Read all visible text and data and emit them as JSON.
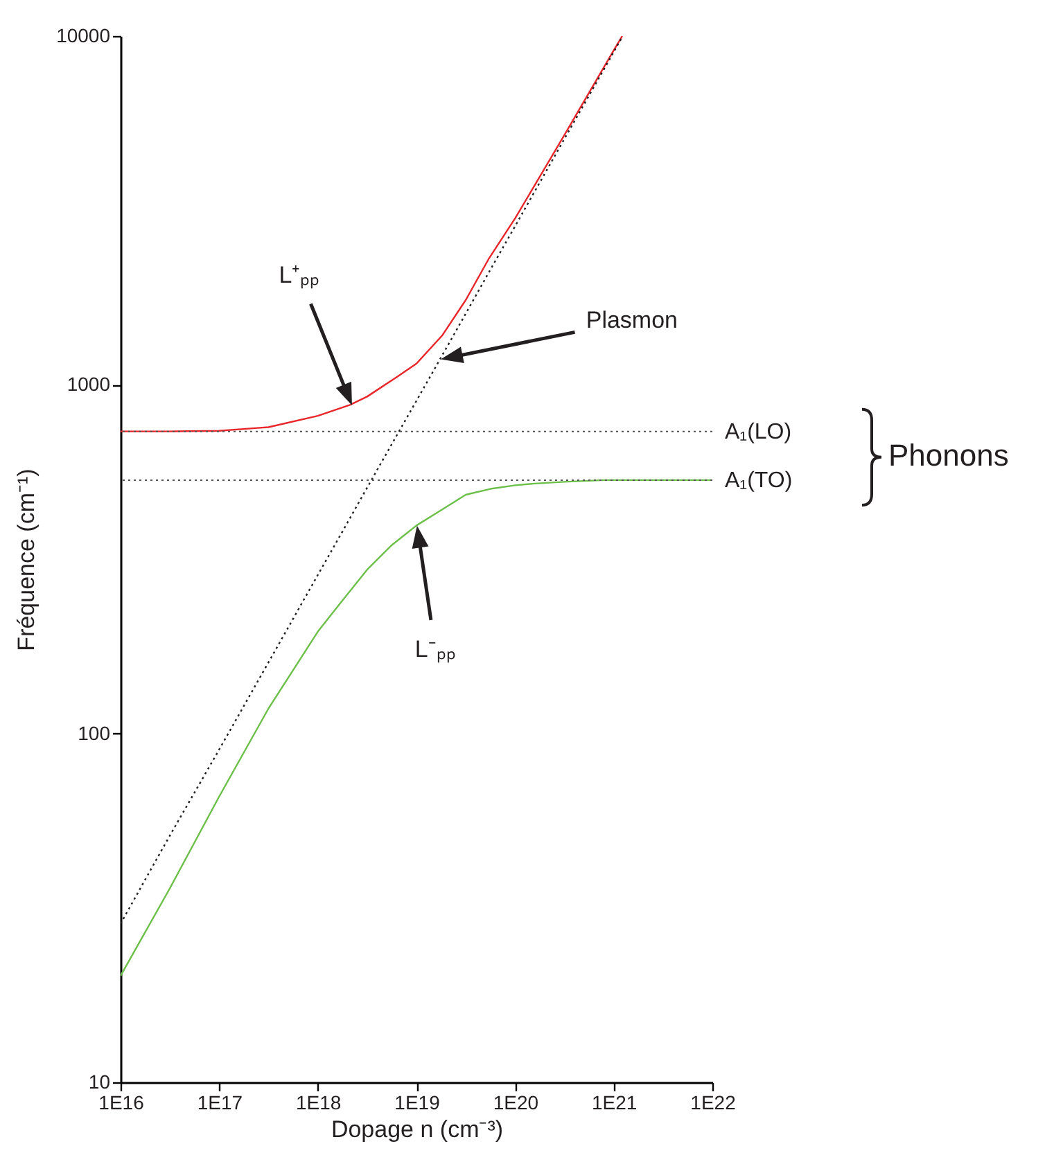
{
  "chart_data": {
    "type": "line",
    "xlabel": "Dopage n (cm⁻³)",
    "ylabel": "Fréquence (cm⁻¹)",
    "log": "xy",
    "xlim": [
      1e+16,
      1e+22
    ],
    "ylim": [
      10,
      10000
    ],
    "xticks": [
      {
        "value": 1e+16,
        "label": "1E16"
      },
      {
        "value": 1e+17,
        "label": "1E17"
      },
      {
        "value": 1e+18,
        "label": "1E18"
      },
      {
        "value": 1e+19,
        "label": "1E19"
      },
      {
        "value": 1e+20,
        "label": "1E20"
      },
      {
        "value": 1e+21,
        "label": "1E21"
      },
      {
        "value": 1e+22,
        "label": "1E22"
      }
    ],
    "yticks": [
      10,
      100,
      1000,
      10000
    ],
    "series": [
      {
        "color": "#e8262a",
        "line_style": "solid",
        "x": [
          1e+16,
          3.16e+16,
          1e+17,
          2.45e+17,
          3.16e+17,
          1e+18,
          2.14e+18,
          3.16e+18,
          6.3e+18,
          1e+19,
          1.82e+19,
          3.16e+19,
          5.37e+19,
          1e+20,
          3.16e+20,
          1e+21,
          1.22e+21
        ],
        "values": [
          735,
          735,
          738,
          752,
          756,
          815,
          877,
          925,
          1052,
          1150,
          1384,
          1750,
          2290,
          3000,
          5200,
          9100,
          10000
        ]
      },
      {
        "color": "#231f20",
        "line_style": "dotted",
        "x": [
          1e+16,
          3.16e+16,
          1e+17,
          3.16e+17,
          1e+18,
          1.78e+18,
          3.16e+18,
          5.62e+18,
          1e+19,
          1.78e+19,
          3.16e+19,
          5.62e+19,
          1e+20,
          3.16e+20,
          1e+21,
          1.22e+21
        ],
        "values": [
          28.5,
          51,
          90,
          160,
          285,
          380,
          507,
          676,
          900,
          1200,
          1600,
          2140,
          2850,
          5070,
          9000,
          9950
        ]
      },
      {
        "color": "#6cc04a",
        "line_style": "solid",
        "x": [
          1e+16,
          3.16e+16,
          1e+17,
          3.16e+17,
          1e+18,
          1.7e+18,
          3.16e+18,
          5.62e+18,
          1e+19,
          1.78e+19,
          3.16e+19,
          5.62e+19,
          1e+20,
          1.58e+20,
          3.16e+20,
          7.94e+20,
          3.16e+21,
          1e+22
        ],
        "values": [
          20.2,
          36,
          66,
          118,
          196,
          237,
          295,
          347,
          395,
          437,
          484,
          503,
          515,
          521,
          527,
          533,
          533,
          533
        ]
      }
    ],
    "ref_lines": [
      {
        "axis": "y",
        "value": 735,
        "label": "A₁(LO)",
        "color": "#555555",
        "line_style": "dotted"
      },
      {
        "axis": "y",
        "value": 533,
        "label": "A₁(TO)",
        "color": "#555555",
        "line_style": "dotted"
      }
    ],
    "annotations": [
      "L⁺ₚₚ",
      "Plasmon",
      "L⁻ₚₚ",
      "Phonons"
    ]
  }
}
